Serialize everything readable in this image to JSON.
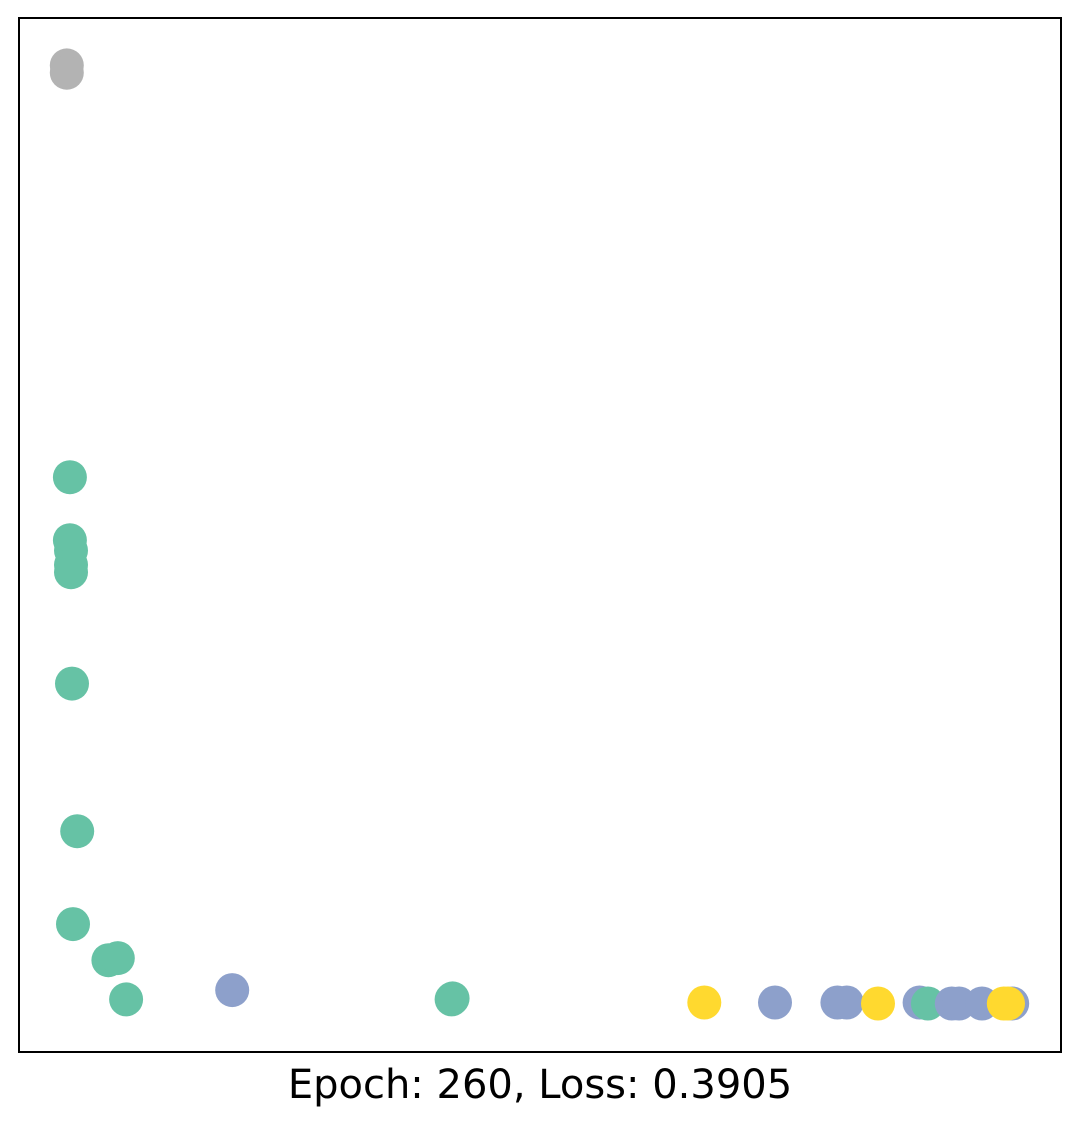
{
  "chart_data": {
    "type": "scatter",
    "title": "",
    "xlabel": "Epoch: 260, Loss: 0.3905",
    "ylabel": "",
    "grid": false,
    "legend": "none",
    "xticks": false,
    "yticks": false,
    "xlim": [
      0,
      1
    ],
    "ylim": [
      0,
      1
    ],
    "palette": {
      "gray": "#b3b3b3",
      "teal": "#66c2a5",
      "blue": "#8da0cb",
      "yellow": "#ffd92f"
    },
    "points": [
      {
        "x": 0.045,
        "y": 0.955,
        "color": "gray"
      },
      {
        "x": 0.045,
        "y": 0.948,
        "color": "gray"
      },
      {
        "x": 0.048,
        "y": 0.556,
        "color": "teal"
      },
      {
        "x": 0.048,
        "y": 0.495,
        "color": "teal"
      },
      {
        "x": 0.049,
        "y": 0.485,
        "color": "teal"
      },
      {
        "x": 0.049,
        "y": 0.471,
        "color": "teal"
      },
      {
        "x": 0.049,
        "y": 0.464,
        "color": "teal"
      },
      {
        "x": 0.05,
        "y": 0.356,
        "color": "teal"
      },
      {
        "x": 0.055,
        "y": 0.213,
        "color": "teal"
      },
      {
        "x": 0.051,
        "y": 0.123,
        "color": "teal"
      },
      {
        "x": 0.085,
        "y": 0.088,
        "color": "teal"
      },
      {
        "x": 0.094,
        "y": 0.09,
        "color": "teal"
      },
      {
        "x": 0.102,
        "y": 0.05,
        "color": "teal"
      },
      {
        "x": 0.415,
        "y": 0.05,
        "color": "teal"
      },
      {
        "x": 0.416,
        "y": 0.051,
        "color": "teal"
      },
      {
        "x": 0.204,
        "y": 0.059,
        "color": "blue"
      },
      {
        "x": 0.658,
        "y": 0.047,
        "color": "yellow"
      },
      {
        "x": 0.726,
        "y": 0.047,
        "color": "blue"
      },
      {
        "x": 0.786,
        "y": 0.047,
        "color": "blue"
      },
      {
        "x": 0.795,
        "y": 0.047,
        "color": "blue"
      },
      {
        "x": 0.825,
        "y": 0.046,
        "color": "yellow"
      },
      {
        "x": 0.865,
        "y": 0.047,
        "color": "blue"
      },
      {
        "x": 0.873,
        "y": 0.046,
        "color": "teal"
      },
      {
        "x": 0.896,
        "y": 0.046,
        "color": "blue"
      },
      {
        "x": 0.903,
        "y": 0.046,
        "color": "blue"
      },
      {
        "x": 0.925,
        "y": 0.046,
        "color": "blue"
      },
      {
        "x": 0.954,
        "y": 0.046,
        "color": "blue"
      },
      {
        "x": 0.946,
        "y": 0.046,
        "color": "yellow"
      },
      {
        "x": 0.95,
        "y": 0.046,
        "color": "yellow"
      }
    ]
  }
}
